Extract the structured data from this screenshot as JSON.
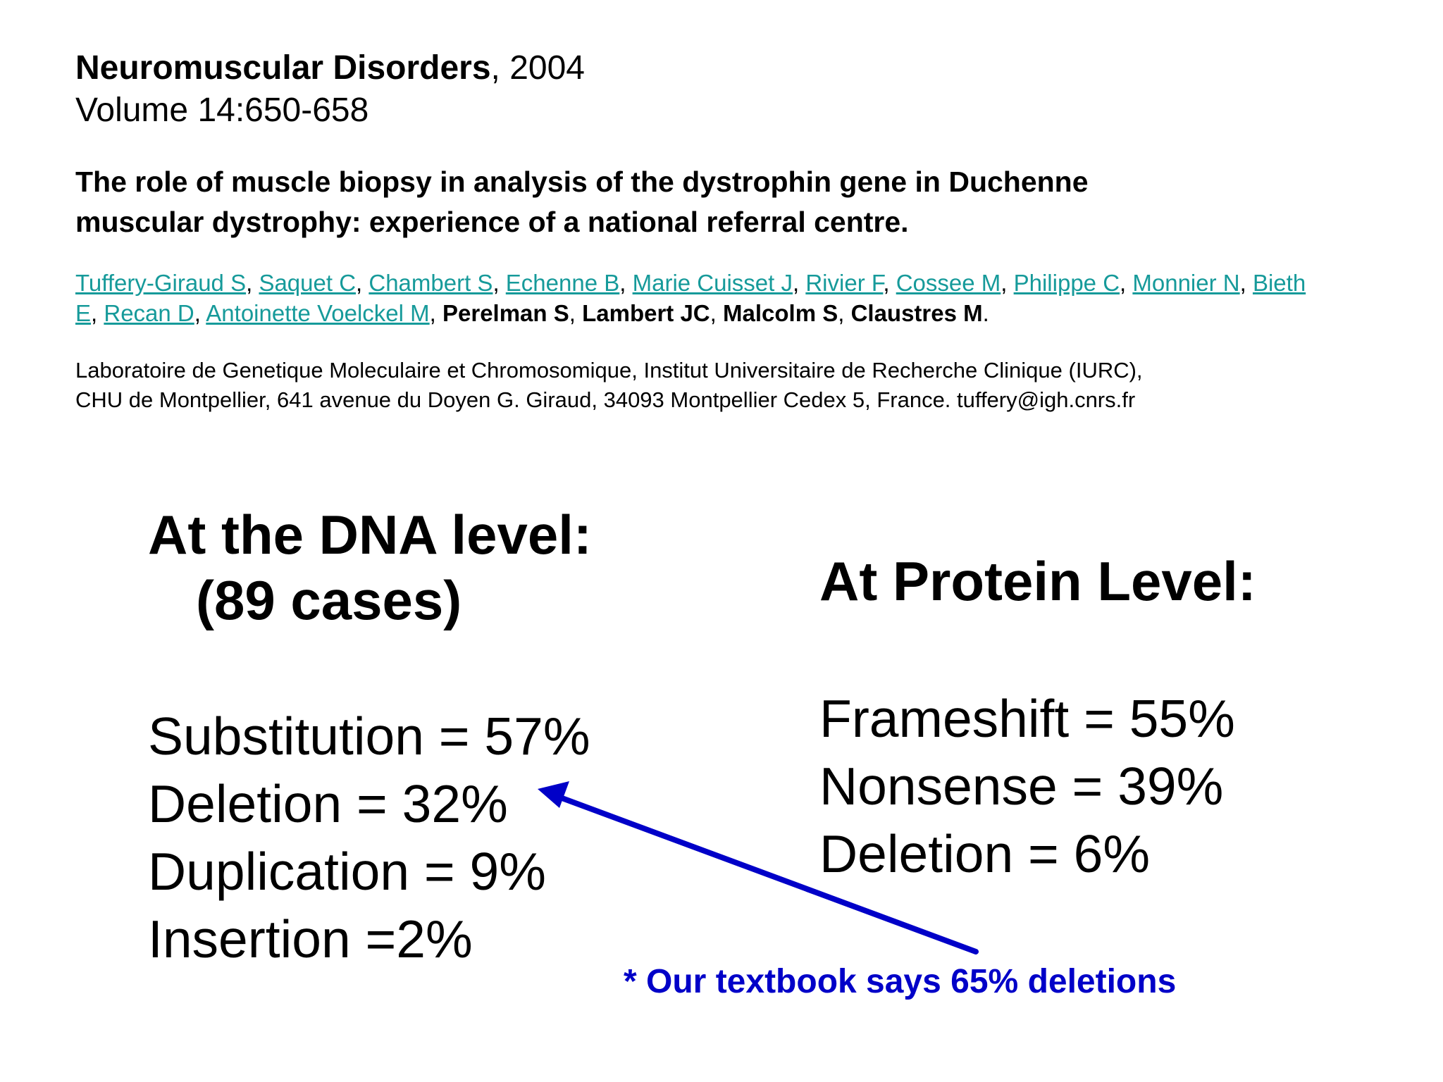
{
  "citation": {
    "journal": "Neuromuscular Disorders",
    "year_text": ", 2004",
    "volume": "Volume 14:650-658"
  },
  "title": {
    "line1": "The role of muscle biopsy in analysis of the dystrophin gene in Duchenne",
    "line2": "muscular dystrophy: experience of a national referral centre."
  },
  "authors": {
    "linked": [
      "Tuffery-Giraud S",
      "Saquet C",
      "Chambert S",
      "Echenne B",
      "Marie Cuisset J",
      "Rivier F",
      "Cossee M",
      "Philippe C",
      "Monnier N",
      "Bieth E",
      "Recan D",
      "Antoinette Voelckel M"
    ],
    "bold": [
      "Perelman S",
      "Lambert JC",
      "Malcolm S",
      "Claustres M"
    ],
    "separator": ", ",
    "terminator": ".",
    "link_color": "#169a9a"
  },
  "affiliation": {
    "line1": "Laboratoire de Genetique Moleculaire et Chromosomique, Institut Universitaire de Recherche Clinique (IURC),",
    "line2": "CHU de Montpellier, 641 avenue du Doyen G. Giraud, 34093 Montpellier Cedex 5, France. tuffery@igh.cnrs.fr"
  },
  "dna": {
    "heading": "At the DNA level:",
    "cases": "(89 cases)",
    "stats": [
      "Substitution = 57%",
      "Deletion = 32%",
      "Duplication = 9%",
      "Insertion =2%"
    ]
  },
  "protein": {
    "heading": "At Protein Level:",
    "stats": [
      "Frameshift = 55%",
      "Nonsense = 39%",
      "Deletion = 6%"
    ]
  },
  "note": {
    "text": "* Our textbook says 65% deletions",
    "color": "#0000c8"
  }
}
